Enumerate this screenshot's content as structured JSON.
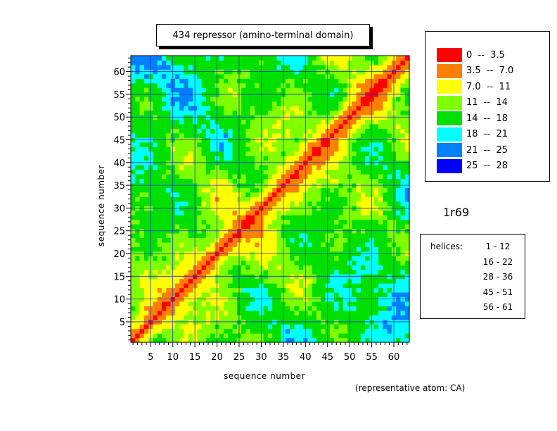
{
  "chart_data": {
    "type": "heatmap",
    "title": "434 repressor (amino-terminal domain)",
    "xlabel": "sequence number",
    "ylabel": "sequence number",
    "xlim": [
      1,
      63
    ],
    "ylim": [
      1,
      63
    ],
    "ticks": [
      5,
      10,
      15,
      20,
      25,
      30,
      35,
      40,
      45,
      50,
      55,
      60
    ],
    "grid": true,
    "legend_position": "top-right",
    "legend": [
      {
        "label": "0  --  3.5",
        "color": "#ff0000"
      },
      {
        "label": "3.5  --  7.0",
        "color": "#ff8000"
      },
      {
        "label": "7.0  --  11",
        "color": "#ffff00"
      },
      {
        "label": "11  --  14",
        "color": "#80ff00"
      },
      {
        "label": "14  --  18",
        "color": "#00e000"
      },
      {
        "label": "18  --  21",
        "color": "#00ffff"
      },
      {
        "label": "21  --  25",
        "color": "#0080ff"
      },
      {
        "label": "25  --  28",
        "color": "#0000ff"
      }
    ],
    "levels": [
      0,
      3.5,
      7.0,
      11,
      14,
      18,
      21,
      25,
      28
    ],
    "structure_id": "1r69",
    "helices_label": "helices:",
    "helices": [
      "1 - 12",
      "16 - 22",
      "28 - 36",
      "45 - 51",
      "56 - 61"
    ],
    "note": "(representative atom: CA)"
  }
}
